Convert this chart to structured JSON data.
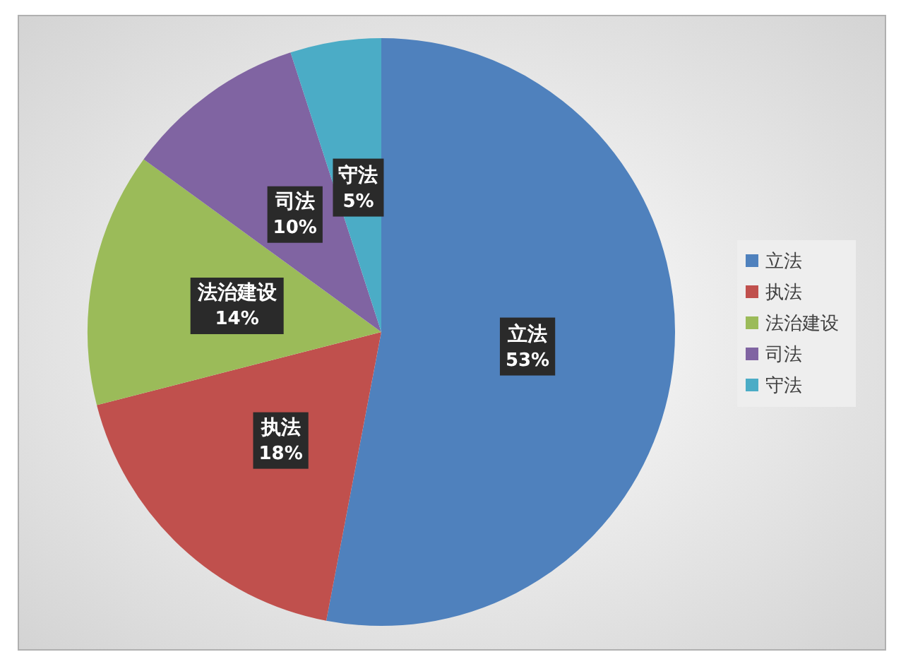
{
  "chart_data": {
    "type": "pie",
    "categories": [
      "立法",
      "执法",
      "法治建设",
      "司法",
      "守法"
    ],
    "values": [
      53,
      18,
      14,
      10,
      5
    ],
    "value_labels": [
      "53%",
      "18%",
      "14%",
      "10%",
      "5%"
    ],
    "colors": [
      "#4f81bd",
      "#c0504d",
      "#9bbb59",
      "#8064a2",
      "#4bacc6"
    ],
    "legend": "right"
  }
}
